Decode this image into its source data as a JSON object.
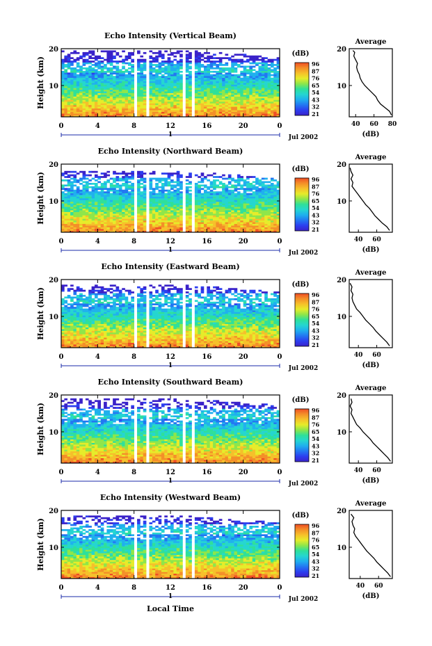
{
  "chart_data": {
    "type": "heatmap",
    "colorbar": {
      "label": "(dB)",
      "ticks": [
        "96",
        "87",
        "76",
        "65",
        "54",
        "43",
        "32",
        "21"
      ],
      "colors": [
        "#3a22c9",
        "#2c3ef0",
        "#2277f2",
        "#1fb0ee",
        "#25d6d0",
        "#2fe09a",
        "#8ee64a",
        "#e6ec2a",
        "#f6c02a",
        "#f48f28",
        "#ee4d24"
      ]
    },
    "common": {
      "ylabel": "Height (km)",
      "yticks": [
        "20",
        "10"
      ],
      "ylim_km": [
        1.5,
        20
      ],
      "xticks": [
        "0",
        "4",
        "8",
        "12",
        "16",
        "20",
        "0"
      ],
      "xlim_hours": [
        0,
        24
      ],
      "day_label": "1",
      "date_label": "Jul 2002",
      "xlabel": "Local Time",
      "data_gaps_hours": [
        [
          7.9,
          8.3
        ],
        [
          9.2,
          9.5
        ],
        [
          13.2,
          13.6
        ],
        [
          14.2,
          14.6
        ]
      ],
      "average_title": "Average",
      "average_xlabel": "(dB)"
    },
    "panels": [
      {
        "title": "Echo Intensity (Vertical Beam)",
        "upper_echo_top_km": 19.5,
        "average": {
          "xticks": [
            "40",
            "60",
            "80"
          ],
          "xlim": [
            33,
            80
          ],
          "profile": [
            [
              79,
              2
            ],
            [
              77,
              3
            ],
            [
              72,
              4
            ],
            [
              67,
              5
            ],
            [
              64,
              6
            ],
            [
              62,
              7
            ],
            [
              58,
              8
            ],
            [
              54,
              9
            ],
            [
              50,
              10
            ],
            [
              47,
              11
            ],
            [
              45,
              12
            ],
            [
              44,
              13
            ],
            [
              42,
              14
            ],
            [
              41,
              15
            ],
            [
              42,
              16
            ],
            [
              40,
              17
            ],
            [
              38,
              18
            ],
            [
              39,
              19
            ],
            [
              37,
              19.5
            ]
          ]
        }
      },
      {
        "title": "Echo Intensity (Northward Beam)",
        "upper_echo_top_km": 18.0,
        "average": {
          "xticks": [
            "40",
            "60"
          ],
          "xlim": [
            30,
            77
          ],
          "profile": [
            [
              74,
              2
            ],
            [
              71,
              3
            ],
            [
              66,
              4
            ],
            [
              62,
              5
            ],
            [
              58,
              6
            ],
            [
              55,
              7
            ],
            [
              52,
              8
            ],
            [
              48,
              9
            ],
            [
              45,
              10
            ],
            [
              42,
              11
            ],
            [
              39,
              12
            ],
            [
              36,
              13
            ],
            [
              33,
              14
            ],
            [
              34,
              15
            ],
            [
              32,
              16
            ],
            [
              34,
              17
            ],
            [
              32,
              18
            ],
            [
              31,
              19
            ]
          ]
        }
      },
      {
        "title": "Echo Intensity (Eastward Beam)",
        "upper_echo_top_km": 18.5,
        "average": {
          "xticks": [
            "40",
            "60"
          ],
          "xlim": [
            30,
            77
          ],
          "profile": [
            [
              74,
              2
            ],
            [
              71,
              3
            ],
            [
              67,
              4
            ],
            [
              63,
              5
            ],
            [
              59,
              6
            ],
            [
              56,
              7
            ],
            [
              52,
              8
            ],
            [
              48,
              9
            ],
            [
              45,
              10
            ],
            [
              42,
              11
            ],
            [
              38,
              12
            ],
            [
              36,
              13
            ],
            [
              34,
              14
            ],
            [
              33,
              15
            ],
            [
              34,
              16
            ],
            [
              32,
              17
            ],
            [
              33,
              18
            ],
            [
              31,
              19
            ]
          ]
        }
      },
      {
        "title": "Echo Intensity (Southward Beam)",
        "upper_echo_top_km": 19.0,
        "average": {
          "xticks": [
            "40",
            "60"
          ],
          "xlim": [
            30,
            77
          ],
          "profile": [
            [
              75,
              2
            ],
            [
              72,
              3
            ],
            [
              68,
              4
            ],
            [
              64,
              5
            ],
            [
              60,
              6
            ],
            [
              56,
              7
            ],
            [
              53,
              8
            ],
            [
              49,
              9
            ],
            [
              45,
              10
            ],
            [
              42,
              11
            ],
            [
              38,
              12
            ],
            [
              36,
              13
            ],
            [
              34,
              14
            ],
            [
              32,
              15
            ],
            [
              33,
              16
            ],
            [
              31,
              17
            ],
            [
              33,
              18
            ],
            [
              32,
              19
            ]
          ]
        }
      },
      {
        "title": "Echo Intensity (Westward Beam)",
        "upper_echo_top_km": 18.5,
        "average": {
          "xticks": [
            "40",
            "60"
          ],
          "xlim": [
            28,
            75
          ],
          "profile": [
            [
              73,
              2
            ],
            [
              70,
              3
            ],
            [
              66,
              4
            ],
            [
              62,
              5
            ],
            [
              58,
              6
            ],
            [
              55,
              7
            ],
            [
              51,
              8
            ],
            [
              47,
              9
            ],
            [
              44,
              10
            ],
            [
              41,
              11
            ],
            [
              38,
              12
            ],
            [
              35,
              13
            ],
            [
              33,
              14
            ],
            [
              34,
              15
            ],
            [
              32,
              16
            ],
            [
              31,
              17
            ],
            [
              33,
              18
            ],
            [
              30,
              19
            ]
          ]
        }
      }
    ]
  }
}
